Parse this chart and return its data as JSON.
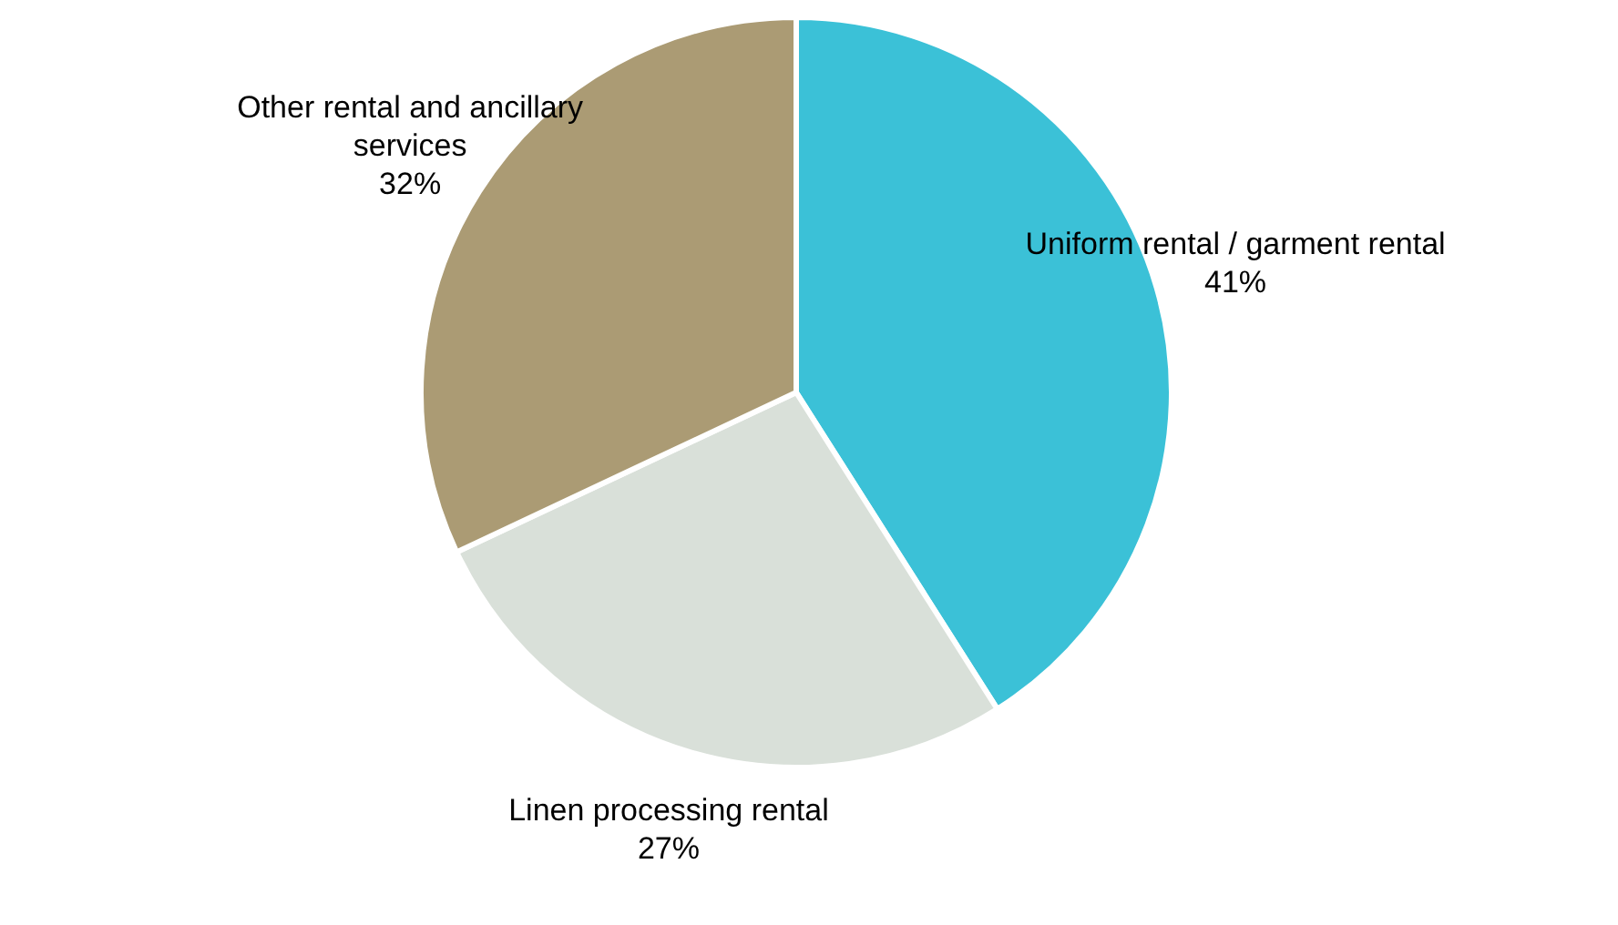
{
  "chart_data": {
    "type": "pie",
    "categories": [
      "Uniform rental / garment rental",
      "Linen processing rental",
      "Other rental and ancillary services"
    ],
    "values": [
      41,
      27,
      32
    ],
    "value_labels": [
      "41%",
      "27%",
      "32%"
    ],
    "colors": [
      "#3bc1d7",
      "#d9e0d9",
      "#ab9b74"
    ],
    "legend": false
  }
}
